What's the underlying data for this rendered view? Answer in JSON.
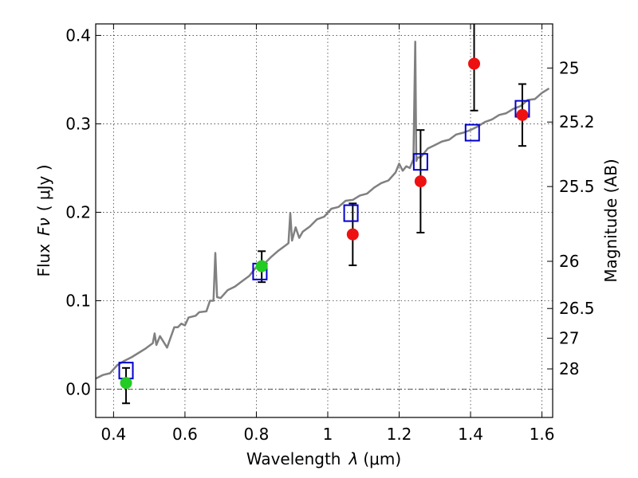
{
  "chart_data": {
    "type": "scatter",
    "xlabel_text": "Wavelength",
    "xlabel_symbol": "λ",
    "xlabel_unit": "(μm)",
    "ylabel_text": "Flux",
    "ylabel_symbol": "Fν",
    "ylabel_unit": "( μJy )",
    "y2label": "Magnitude (AB)",
    "xlim": [
      0.35,
      1.63
    ],
    "ylim": [
      -0.032,
      0.413
    ],
    "grid": true,
    "x_ticks": [
      {
        "value": 0.4,
        "label": "0.4"
      },
      {
        "value": 0.6,
        "label": "0.6"
      },
      {
        "value": 0.8,
        "label": "0.8"
      },
      {
        "value": 1.0,
        "label": "1"
      },
      {
        "value": 1.2,
        "label": "1.2"
      },
      {
        "value": 1.4,
        "label": "1.4"
      },
      {
        "value": 1.6,
        "label": "1.6"
      }
    ],
    "y_ticks": [
      {
        "value": 0.0,
        "label": "0.0"
      },
      {
        "value": 0.1,
        "label": "0.1"
      },
      {
        "value": 0.2,
        "label": "0.2"
      },
      {
        "value": 0.3,
        "label": "0.3"
      },
      {
        "value": 0.4,
        "label": "0.4"
      }
    ],
    "mag_ticks": [
      {
        "value": 25,
        "label": "25"
      },
      {
        "value": 25.2,
        "label": "25.2"
      },
      {
        "value": 25.5,
        "label": "25.5"
      },
      {
        "value": 26,
        "label": "26"
      },
      {
        "value": 26.5,
        "label": "26.5"
      },
      {
        "value": 27,
        "label": "27"
      },
      {
        "value": 28,
        "label": "28"
      }
    ],
    "zero_line": 0.0,
    "model_spectrum": {
      "color": "#808080",
      "x": [
        0.35,
        0.37,
        0.39,
        0.41,
        0.43,
        0.45,
        0.47,
        0.49,
        0.51,
        0.515,
        0.52,
        0.53,
        0.55,
        0.57,
        0.58,
        0.59,
        0.6,
        0.61,
        0.62,
        0.63,
        0.64,
        0.66,
        0.67,
        0.68,
        0.685,
        0.69,
        0.7,
        0.72,
        0.74,
        0.76,
        0.78,
        0.8,
        0.82,
        0.84,
        0.86,
        0.88,
        0.89,
        0.895,
        0.9,
        0.91,
        0.92,
        0.93,
        0.95,
        0.97,
        0.99,
        1.01,
        1.03,
        1.05,
        1.07,
        1.09,
        1.11,
        1.13,
        1.15,
        1.17,
        1.19,
        1.2,
        1.21,
        1.22,
        1.23,
        1.24,
        1.245,
        1.248,
        1.252,
        1.26,
        1.28,
        1.3,
        1.32,
        1.34,
        1.36,
        1.38,
        1.4,
        1.42,
        1.44,
        1.46,
        1.48,
        1.5,
        1.52,
        1.54,
        1.56,
        1.58,
        1.6,
        1.62
      ],
      "y": [
        0.012,
        0.016,
        0.018,
        0.027,
        0.032,
        0.036,
        0.041,
        0.046,
        0.052,
        0.063,
        0.05,
        0.06,
        0.047,
        0.07,
        0.07,
        0.074,
        0.072,
        0.081,
        0.082,
        0.083,
        0.087,
        0.088,
        0.1,
        0.1,
        0.154,
        0.104,
        0.103,
        0.112,
        0.116,
        0.122,
        0.128,
        0.138,
        0.141,
        0.149,
        0.156,
        0.162,
        0.165,
        0.199,
        0.168,
        0.183,
        0.171,
        0.178,
        0.184,
        0.192,
        0.195,
        0.204,
        0.206,
        0.213,
        0.214,
        0.219,
        0.221,
        0.228,
        0.233,
        0.236,
        0.245,
        0.255,
        0.247,
        0.252,
        0.25,
        0.26,
        0.393,
        0.258,
        0.262,
        0.262,
        0.272,
        0.276,
        0.28,
        0.282,
        0.288,
        0.29,
        0.293,
        0.297,
        0.302,
        0.305,
        0.31,
        0.312,
        0.317,
        0.32,
        0.327,
        0.328,
        0.335,
        0.34
      ]
    },
    "series": [
      {
        "kind": "open-square",
        "color": "#0000cc",
        "x": [
          0.435,
          0.81,
          1.065,
          1.26,
          1.405,
          1.545
        ],
        "y": [
          0.021,
          0.133,
          0.199,
          0.257,
          0.29,
          0.317
        ]
      },
      {
        "kind": "filled-circle",
        "color": "#22cc22",
        "x": [
          0.435,
          0.815
        ],
        "y": [
          0.007,
          0.139
        ],
        "yerr_low": [
          0.023,
          0.018
        ],
        "yerr_high": [
          0.017,
          0.017
        ]
      },
      {
        "kind": "filled-circle",
        "color": "#ee1111",
        "x": [
          1.07,
          1.26,
          1.41,
          1.545
        ],
        "y": [
          0.175,
          0.235,
          0.368,
          0.31
        ],
        "yerr_low": [
          0.035,
          0.058,
          0.053,
          0.035
        ],
        "yerr_high": [
          0.035,
          0.058,
          0.053,
          0.035
        ]
      }
    ]
  }
}
